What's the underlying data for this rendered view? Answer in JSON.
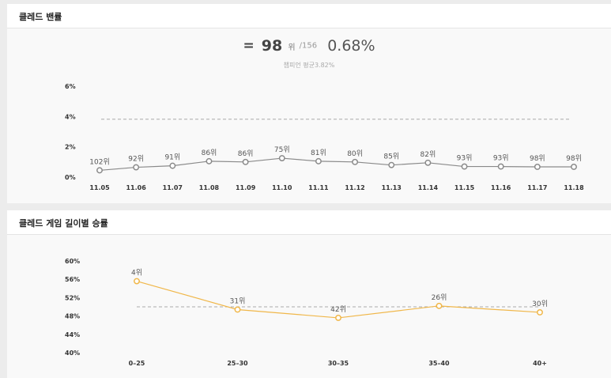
{
  "panel1": {
    "title": "클레드 밴률",
    "summary": {
      "eq": "=",
      "rank": "98",
      "unit": "위",
      "total": "/156",
      "rate": "0.68%"
    },
    "avg_text": "챔피언 평균3.82%"
  },
  "panel2": {
    "title": "클레드 게임 길이별 승률"
  },
  "colors": {
    "line1": "#8a8a8a",
    "line2": "#f0b74a",
    "avgline": "#aaaaaa"
  },
  "chart_data": [
    {
      "type": "line",
      "yticks": [
        "6%",
        "4%",
        "2%",
        "0%"
      ],
      "ylim": [
        0,
        6
      ],
      "categories": [
        "11.05",
        "11.06",
        "11.07",
        "11.08",
        "11.09",
        "11.10",
        "11.11",
        "11.12",
        "11.13",
        "11.14",
        "11.15",
        "11.16",
        "11.17",
        "11.18"
      ],
      "values": [
        0.45,
        0.65,
        0.75,
        1.05,
        1.0,
        1.25,
        1.05,
        1.0,
        0.8,
        0.95,
        0.7,
        0.7,
        0.68,
        0.68
      ],
      "labels": [
        "102위",
        "92위",
        "91위",
        "86위",
        "86위",
        "75위",
        "81위",
        "80위",
        "85위",
        "82위",
        "93위",
        "93위",
        "98위",
        "98위"
      ],
      "avg": 3.82
    },
    {
      "type": "line",
      "yticks": [
        "60%",
        "56%",
        "52%",
        "48%",
        "44%",
        "40%"
      ],
      "ylim": [
        40,
        60
      ],
      "categories": [
        "0–25",
        "25–30",
        "30–35",
        "35–40",
        "40+"
      ],
      "values": [
        55.6,
        49.4,
        47.6,
        50.2,
        48.8
      ],
      "labels": [
        "4위",
        "31위",
        "42위",
        "26위",
        "30위"
      ],
      "avg": 50
    }
  ]
}
